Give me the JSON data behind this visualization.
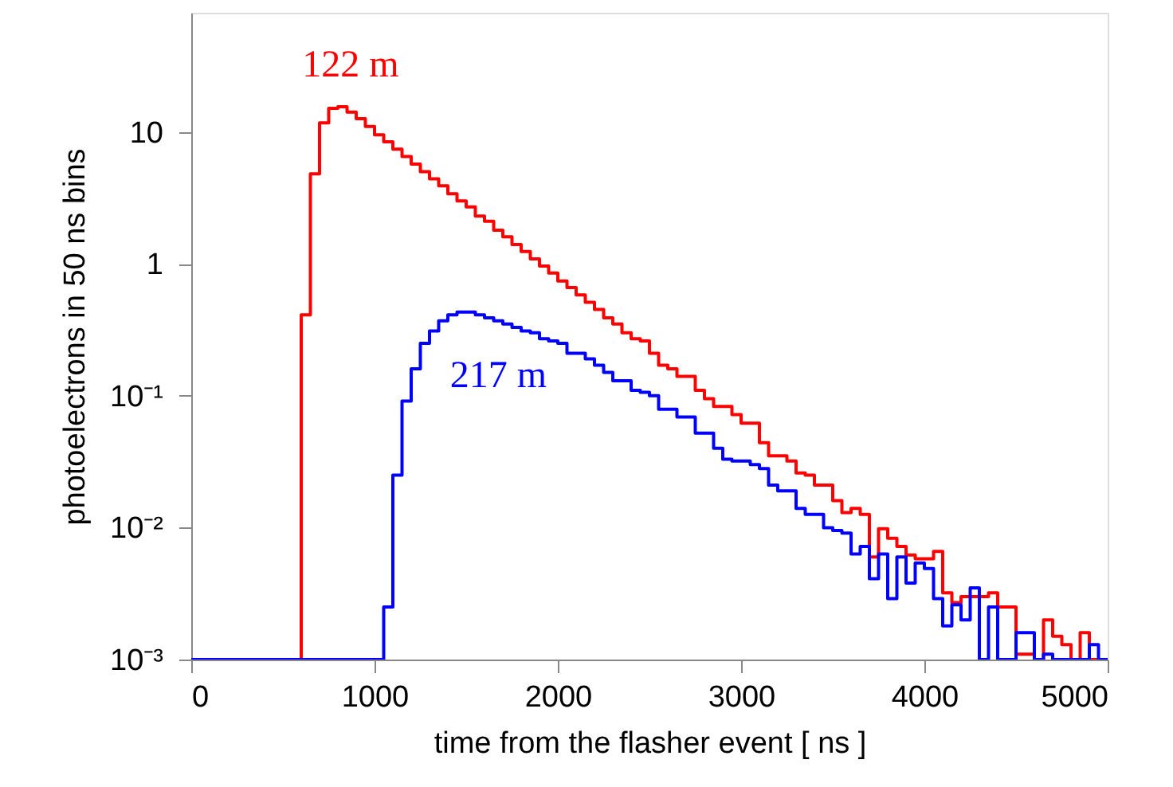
{
  "chart_data": {
    "type": "histogram",
    "xlabel": "time from the flasher event [ ns ]",
    "ylabel": "photoelectrons in 50 ns bins",
    "bins": [
      0,
      50,
      100,
      150,
      200,
      250,
      300,
      350,
      400,
      450,
      500,
      550,
      600,
      650,
      700,
      750,
      800,
      850,
      900,
      950,
      1000,
      1050,
      1100,
      1150,
      1200,
      1250,
      1300,
      1350,
      1400,
      1450,
      1500,
      1550,
      1600,
      1650,
      1700,
      1750,
      1800,
      1850,
      1900,
      1950,
      2000,
      2050,
      2100,
      2150,
      2200,
      2250,
      2300,
      2350,
      2400,
      2450,
      2500,
      2550,
      2600,
      2650,
      2700,
      2750,
      2800,
      2850,
      2900,
      2950,
      3000,
      3050,
      3100,
      3150,
      3200,
      3250,
      3300,
      3350,
      3400,
      3450,
      3500,
      3550,
      3600,
      3650,
      3700,
      3750,
      3800,
      3850,
      3900,
      3950,
      4000,
      4050,
      4100,
      4150,
      4200,
      4250,
      4300,
      4350,
      4400,
      4450,
      4500,
      4550,
      4600,
      4650,
      4700,
      4750,
      4800,
      4850,
      4900,
      4950,
      5000
    ],
    "series": [
      {
        "name": "122 m",
        "color": "#ff0000",
        "values": [
          null,
          null,
          null,
          null,
          null,
          null,
          null,
          null,
          null,
          null,
          null,
          null,
          0.41,
          4.8,
          11.7,
          15.1,
          15.5,
          14.1,
          12.6,
          11.0,
          9.5,
          8.4,
          7.4,
          6.5,
          5.7,
          5.0,
          4.4,
          3.9,
          3.4,
          3.0,
          2.7,
          2.3,
          2.1,
          1.8,
          1.6,
          1.4,
          1.24,
          1.09,
          0.96,
          0.85,
          0.74,
          0.66,
          0.58,
          0.51,
          0.45,
          0.39,
          0.35,
          0.3,
          0.27,
          0.26,
          0.21,
          0.17,
          0.16,
          0.14,
          0.14,
          0.11,
          0.095,
          0.083,
          0.083,
          0.072,
          0.062,
          0.062,
          0.044,
          0.035,
          0.035,
          0.032,
          0.026,
          0.025,
          0.021,
          0.021,
          0.016,
          0.013,
          0.014,
          0.0126,
          0.006,
          0.0098,
          0.0083,
          0.0072,
          0.0062,
          0.0058,
          0.0058,
          0.0066,
          0.0032,
          0.0027,
          0.003,
          0.003,
          0.003,
          0.0032,
          0.0025,
          0.0025,
          0.0011,
          0.0011,
          null,
          0.002,
          0.0015,
          0.0013,
          null,
          0.0016,
          null,
          null
        ]
      },
      {
        "name": "217 m",
        "color": "#0000ff",
        "values": [
          null,
          null,
          null,
          null,
          null,
          null,
          null,
          null,
          null,
          null,
          null,
          null,
          null,
          null,
          null,
          null,
          null,
          null,
          null,
          null,
          null,
          0.0025,
          0.025,
          0.091,
          0.16,
          0.25,
          0.31,
          0.37,
          0.41,
          0.43,
          0.43,
          0.41,
          0.39,
          0.37,
          0.35,
          0.33,
          0.31,
          0.3,
          0.27,
          0.26,
          0.25,
          0.21,
          0.21,
          0.19,
          0.17,
          0.15,
          0.13,
          0.13,
          0.11,
          0.106,
          0.1,
          0.079,
          0.079,
          0.069,
          0.069,
          0.052,
          0.052,
          0.04,
          0.033,
          0.032,
          0.032,
          0.03,
          0.028,
          0.021,
          0.019,
          0.019,
          0.014,
          0.0126,
          0.0126,
          0.01,
          0.0095,
          0.0091,
          0.0063,
          0.0072,
          0.0041,
          0.0063,
          0.0029,
          0.006,
          0.0038,
          0.0054,
          0.0049,
          0.0029,
          0.0018,
          0.0026,
          0.002,
          0.0035,
          null,
          0.0025,
          null,
          null,
          0.0016,
          0.0016,
          null,
          0.0011,
          null,
          null,
          null,
          null,
          0.0013,
          null
        ]
      }
    ],
    "xlim": [
      0,
      5000
    ],
    "xticks": [
      0,
      1000,
      2000,
      3000,
      4000,
      5000
    ],
    "ylim": [
      0.001,
      80
    ],
    "log": true,
    "yticks": [
      {
        "value": 0.001,
        "label": "10⁻³"
      },
      {
        "value": 0.01,
        "label": "10⁻²"
      },
      {
        "value": 0.1,
        "label": "10⁻¹"
      },
      1,
      10
    ],
    "grid": false
  }
}
